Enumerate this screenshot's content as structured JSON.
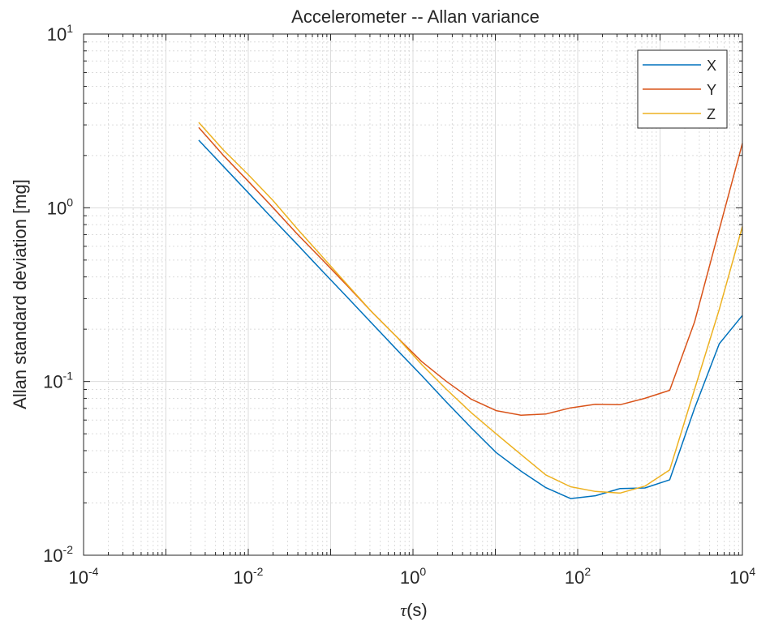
{
  "chart_data": {
    "type": "line",
    "title": "Accelerometer -- Allan variance",
    "xlabel": {
      "symbol": "τ",
      "unit": "(s)"
    },
    "ylabel": "Allan standard deviation [mg]",
    "x_scale": "log",
    "y_scale": "log",
    "xlim": [
      0.0001,
      10000
    ],
    "ylim": [
      0.01,
      10
    ],
    "grid": true,
    "minor_grid": true,
    "legend_position": "top-right",
    "x_ticks": [
      {
        "value": 0.0001,
        "base": "10",
        "exp": "-4"
      },
      {
        "value": 0.01,
        "base": "10",
        "exp": "-2"
      },
      {
        "value": 1,
        "base": "10",
        "exp": "0"
      },
      {
        "value": 100,
        "base": "10",
        "exp": "2"
      },
      {
        "value": 10000,
        "base": "10",
        "exp": "4"
      }
    ],
    "y_ticks": [
      {
        "value": 0.01,
        "base": "10",
        "exp": "-2"
      },
      {
        "value": 0.1,
        "base": "10",
        "exp": "-1"
      },
      {
        "value": 1,
        "base": "10",
        "exp": "0"
      },
      {
        "value": 10,
        "base": "10",
        "exp": "1"
      }
    ],
    "series": [
      {
        "name": "X",
        "color": "#0072bd",
        "x": [
          0.0025,
          0.005,
          0.01,
          0.02,
          0.04,
          0.08,
          0.16,
          0.32,
          0.64,
          1.28,
          2.56,
          5.12,
          10.24,
          20.48,
          40.96,
          81.92,
          163.84,
          327.68,
          655.36,
          1310.72,
          2621.44,
          5242.88,
          10000
        ],
        "y": [
          2.45,
          1.73,
          1.22,
          0.86,
          0.61,
          0.43,
          0.305,
          0.215,
          0.152,
          0.108,
          0.076,
          0.054,
          0.039,
          0.0305,
          0.0245,
          0.0212,
          0.022,
          0.0242,
          0.0244,
          0.0272,
          0.07,
          0.165,
          0.24
        ]
      },
      {
        "name": "Y",
        "color": "#d95319",
        "x": [
          0.0025,
          0.005,
          0.01,
          0.02,
          0.04,
          0.08,
          0.16,
          0.32,
          0.64,
          1.28,
          2.56,
          5.12,
          10.24,
          20.48,
          40.96,
          81.92,
          163.84,
          327.68,
          655.36,
          1310.72,
          2621.44,
          5242.88,
          10000
        ],
        "y": [
          2.9,
          2.0,
          1.42,
          1.0,
          0.7,
          0.5,
          0.355,
          0.25,
          0.18,
          0.13,
          0.1,
          0.079,
          0.068,
          0.064,
          0.065,
          0.0705,
          0.074,
          0.0735,
          0.08,
          0.089,
          0.22,
          0.75,
          2.35
        ]
      },
      {
        "name": "Z",
        "color": "#edb120",
        "x": [
          0.0025,
          0.005,
          0.01,
          0.02,
          0.04,
          0.08,
          0.16,
          0.32,
          0.64,
          1.28,
          2.56,
          5.12,
          10.24,
          20.48,
          40.96,
          81.92,
          163.84,
          327.68,
          655.36,
          1310.72,
          2621.44,
          5242.88,
          10000
        ],
        "y": [
          3.1,
          2.15,
          1.55,
          1.1,
          0.75,
          0.52,
          0.36,
          0.25,
          0.18,
          0.125,
          0.09,
          0.066,
          0.05,
          0.038,
          0.029,
          0.0248,
          0.0233,
          0.0228,
          0.025,
          0.031,
          0.09,
          0.26,
          0.78
        ]
      }
    ]
  }
}
